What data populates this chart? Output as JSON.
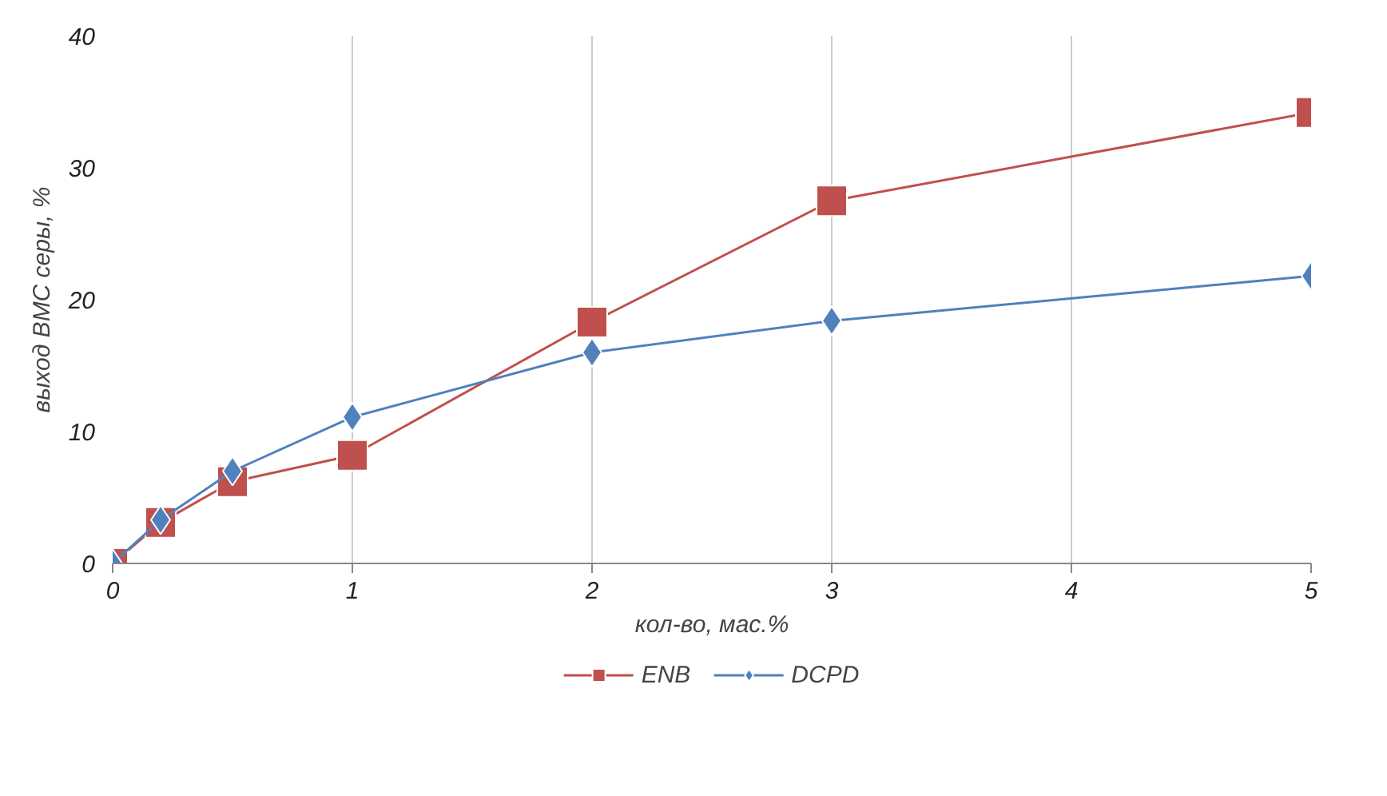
{
  "chart_data": {
    "type": "line",
    "xlabel": "кол-во, мас.%",
    "ylabel": "выход ВМС серы, %",
    "x": [
      0,
      0.2,
      0.5,
      1,
      2,
      3,
      5
    ],
    "series": [
      {
        "name": "ENB",
        "color": "#c0504d",
        "marker": "square",
        "values": [
          0,
          3.1,
          6.2,
          8.2,
          18.3,
          27.5,
          34.2
        ]
      },
      {
        "name": "DCPD",
        "color": "#4f81bd",
        "marker": "diamond",
        "values": [
          0,
          3.3,
          7.0,
          11.1,
          16.0,
          18.4,
          21.8
        ]
      }
    ],
    "xlim": [
      0,
      5
    ],
    "xticks": [
      0,
      1,
      2,
      3,
      4,
      5
    ],
    "ylim": [
      0,
      40
    ],
    "yticks": [
      0,
      10,
      20,
      30,
      40
    ],
    "grid": "x",
    "legend": "bottom",
    "line_style": "solid"
  }
}
